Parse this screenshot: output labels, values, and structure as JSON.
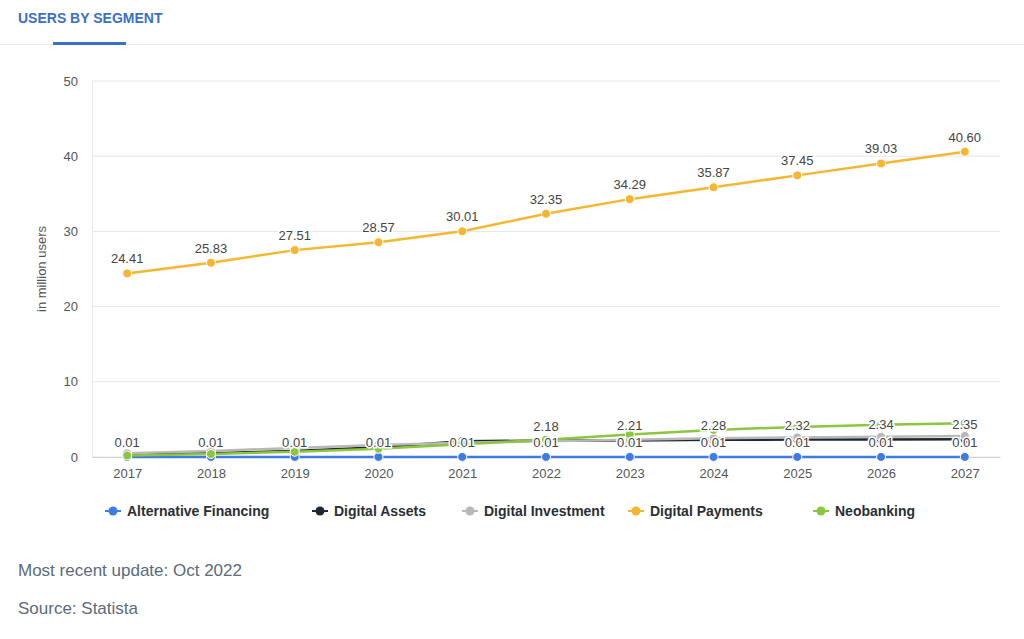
{
  "chart_data": {
    "type": "line",
    "title": "USERS BY SEGMENT",
    "ylabel": "in million users",
    "footer": [
      "Most recent update: Oct 2022",
      "Source: Statista"
    ],
    "categories": [
      "2017",
      "2018",
      "2019",
      "2020",
      "2021",
      "2022",
      "2023",
      "2024",
      "2025",
      "2026",
      "2027"
    ],
    "ylim": [
      0,
      50
    ],
    "yticks": [
      0,
      10,
      20,
      30,
      40,
      50
    ],
    "grid": true,
    "legend": "bottom",
    "series": [
      {
        "name": "Alternative Financing",
        "color": "#3f7be6",
        "marker": "circle",
        "data_labels": true,
        "values": [
          0.01,
          0.01,
          0.01,
          0.01,
          0.01,
          0.01,
          0.01,
          0.01,
          0.01,
          0.01,
          0.01
        ]
      },
      {
        "name": "Digital Assets",
        "color": "#1e2630",
        "marker": "circle",
        "values": [
          0.3,
          0.5,
          0.8,
          1.3,
          2.1,
          2.18,
          2.21,
          2.28,
          2.32,
          2.34,
          2.35
        ],
        "value_labels": [
          null,
          null,
          null,
          null,
          null,
          "2.18",
          "2.21",
          "2.28",
          "2.32",
          "2.34",
          "2.35"
        ]
      },
      {
        "name": "Digital Investment",
        "color": "#b8b8b8",
        "marker": "circle",
        "values": [
          0.5,
          0.8,
          1.2,
          1.6,
          1.9,
          2.1,
          2.3,
          2.5,
          2.6,
          2.7,
          2.8
        ]
      },
      {
        "name": "Digital Payments",
        "color": "#f5b731",
        "marker": "circle",
        "values": [
          24.41,
          25.83,
          27.51,
          28.57,
          30.01,
          32.35,
          34.29,
          35.87,
          37.45,
          39.03,
          40.6
        ],
        "value_labels": [
          "24.41",
          "25.83",
          "27.51",
          "28.57",
          "30.01",
          "32.35",
          "34.29",
          "35.87",
          "37.45",
          "39.03",
          "40.60"
        ]
      },
      {
        "name": "Neobanking",
        "color": "#8cc63f",
        "marker": "circle",
        "values": [
          0.2,
          0.4,
          0.7,
          1.1,
          1.7,
          2.3,
          3.0,
          3.6,
          4.0,
          4.3,
          4.5
        ]
      }
    ]
  }
}
